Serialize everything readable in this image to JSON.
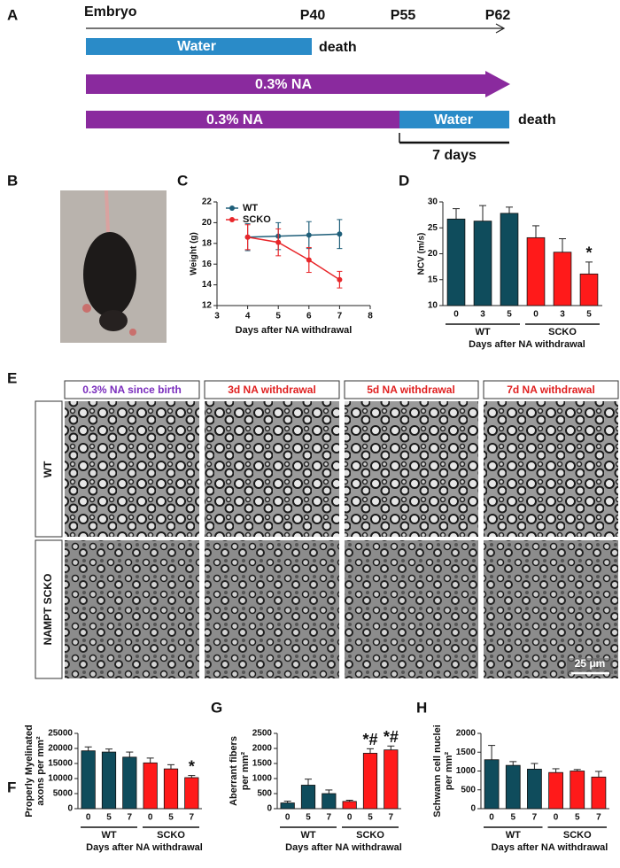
{
  "panel_labels": [
    "A",
    "B",
    "C",
    "D",
    "E",
    "F",
    "G",
    "H"
  ],
  "timeline": {
    "axis_labels": [
      "Embryo",
      "P40",
      "P55",
      "P62"
    ],
    "row1": {
      "bar": "Water",
      "end": "death"
    },
    "row2": {
      "bar": "0.3% NA"
    },
    "row3": {
      "bar1": "0.3% NA",
      "bar2": "Water",
      "end": "death"
    },
    "span": "7 days"
  },
  "micrographs": {
    "columns": [
      "0.3% NA since birth",
      "3d NA withdrawal",
      "5d NA withdrawal",
      "7d NA withdrawal"
    ],
    "rows": [
      "WT",
      "NAMPT SCKO"
    ],
    "scale_bar": "25 μm"
  },
  "chart_data": [
    {
      "type": "line",
      "xlabel": "Days after NA withdrawal",
      "ylabel": "Weight (g)",
      "x": [
        4,
        5,
        6,
        7
      ],
      "xlim": [
        3,
        8
      ],
      "xticks": [
        3,
        4,
        5,
        6,
        7,
        8
      ],
      "ylim": [
        12,
        22
      ],
      "yticks": [
        12,
        14,
        16,
        18,
        20,
        22
      ],
      "legend": "upper left",
      "series": [
        {
          "name": "WT",
          "color": "#1f5f7a",
          "values": [
            18.6,
            18.7,
            18.8,
            18.9
          ],
          "errors": [
            1.3,
            1.3,
            1.3,
            1.4
          ]
        },
        {
          "name": "SCKO",
          "color": "#e8262a",
          "values": [
            18.6,
            18.1,
            16.4,
            14.5
          ],
          "errors": [
            1.2,
            1.3,
            1.2,
            0.8
          ]
        }
      ]
    },
    {
      "type": "bar",
      "ylabel": "NCV (m/s)",
      "xlabel": "Days after NA withdrawal",
      "categories": [
        "0",
        "3",
        "5",
        "0",
        "3",
        "5"
      ],
      "groups": [
        "WT",
        "SCKO"
      ],
      "values": [
        26.7,
        26.3,
        27.8,
        23.1,
        20.3,
        16.1
      ],
      "errors": [
        2.0,
        3.0,
        1.2,
        2.3,
        2.6,
        2.3
      ],
      "colors": [
        "#0f4c5c",
        "#0f4c5c",
        "#0f4c5c",
        "#ff1a1a",
        "#ff1a1a",
        "#ff1a1a"
      ],
      "markers": [
        null,
        null,
        null,
        null,
        null,
        "*"
      ],
      "ylim": [
        10,
        30
      ],
      "yticks": [
        10,
        15,
        20,
        25,
        30
      ]
    },
    {
      "type": "bar",
      "ylabel": [
        "Properly Myelinated",
        "axons per mm²"
      ],
      "xlabel": "Days after NA withdrawal",
      "categories": [
        "0",
        "5",
        "7",
        "0",
        "5",
        "7"
      ],
      "groups": [
        "WT",
        "SCKO"
      ],
      "values": [
        19200,
        18800,
        17100,
        15200,
        13200,
        10300
      ],
      "errors": [
        1300,
        1000,
        1700,
        1600,
        1400,
        700
      ],
      "colors": [
        "#0f4c5c",
        "#0f4c5c",
        "#0f4c5c",
        "#ff1a1a",
        "#ff1a1a",
        "#ff1a1a"
      ],
      "markers": [
        null,
        null,
        null,
        null,
        null,
        "*"
      ],
      "ylim": [
        0,
        25000
      ],
      "yticks": [
        0,
        5000,
        10000,
        15000,
        20000,
        25000
      ]
    },
    {
      "type": "bar",
      "ylabel": [
        "Aberrant fibers",
        "per mm²"
      ],
      "xlabel": "Days after NA withdrawal",
      "categories": [
        "0",
        "5",
        "7",
        "0",
        "5",
        "7"
      ],
      "groups": [
        "WT",
        "SCKO"
      ],
      "values": [
        190,
        780,
        500,
        240,
        1840,
        1950
      ],
      "errors": [
        60,
        200,
        120,
        40,
        150,
        130
      ],
      "colors": [
        "#0f4c5c",
        "#0f4c5c",
        "#0f4c5c",
        "#ff1a1a",
        "#ff1a1a",
        "#ff1a1a"
      ],
      "markers": [
        null,
        null,
        null,
        null,
        "*#",
        "*#"
      ],
      "ylim": [
        0,
        2500
      ],
      "yticks": [
        0,
        500,
        1000,
        1500,
        2000,
        2500
      ]
    },
    {
      "type": "bar",
      "ylabel": [
        "Schwann cell nuclei",
        "per mm²"
      ],
      "xlabel": "Days after NA withdrawal",
      "categories": [
        "0",
        "5",
        "7",
        "0",
        "5",
        "7"
      ],
      "groups": [
        "WT",
        "SCKO"
      ],
      "values": [
        1300,
        1150,
        1050,
        960,
        1000,
        840
      ],
      "errors": [
        380,
        100,
        150,
        100,
        40,
        150
      ],
      "colors": [
        "#0f4c5c",
        "#0f4c5c",
        "#0f4c5c",
        "#ff1a1a",
        "#ff1a1a",
        "#ff1a1a"
      ],
      "markers": [
        null,
        null,
        null,
        null,
        null,
        null
      ],
      "ylim": [
        0,
        2000
      ],
      "yticks": [
        0,
        500,
        1000,
        1500,
        2000
      ]
    }
  ]
}
